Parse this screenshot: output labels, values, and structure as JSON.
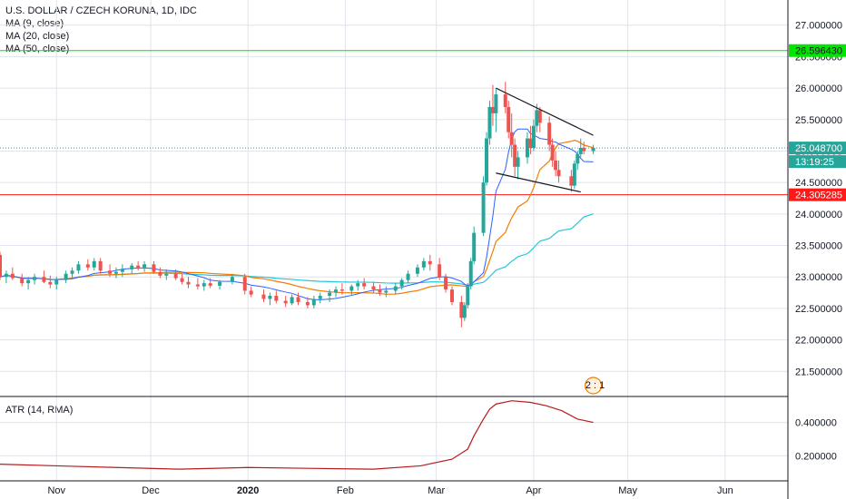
{
  "legend": {
    "symbol": "U.S. DOLLAR / CZECH KORUNA, 1D, IDC",
    "ma9": "MA (9, close)",
    "ma20": "MA (20, close)",
    "ma50": "MA (50, close)",
    "atr": "ATR (14, RMA)"
  },
  "colors": {
    "up": "#26a69a",
    "down": "#ef5350",
    "ma9": "#2962ff",
    "ma20": "#f57c00",
    "ma50": "#26c6da",
    "atr": "#b71c1c",
    "green_line": "#00e600",
    "red_line": "#ff1a1a",
    "price_line": "#26a69a",
    "grid": "#e0e3eb"
  },
  "price_axis": {
    "ticks": [
      "27.000000",
      "26.500000",
      "26.000000",
      "25.500000",
      "25.000000",
      "24.500000",
      "24.000000",
      "23.500000",
      "23.000000",
      "22.500000",
      "22.000000",
      "21.500000"
    ],
    "tags": [
      {
        "name": "green-level-tag",
        "label": "26.596430",
        "bg": "#00e600",
        "fg": "#131722"
      },
      {
        "name": "last-price-tag",
        "label": "25.048700",
        "bg": "#26a69a",
        "fg": "#ffffff"
      },
      {
        "name": "countdown-tag",
        "label": "13:19:25",
        "bg": "#26a69a",
        "fg": "#ffffff"
      },
      {
        "name": "red-level-tag",
        "label": "24.305285",
        "bg": "#ff1a1a",
        "fg": "#ffffff"
      }
    ]
  },
  "atr_axis": {
    "ticks": [
      "0.400000",
      "0.200000"
    ]
  },
  "time_axis": {
    "labels": [
      "Nov",
      "Dec",
      "2020",
      "Feb",
      "Mar",
      "Apr",
      "May",
      "Jun"
    ]
  },
  "event_badge": {
    "text": "2 : 1"
  },
  "chart_data": {
    "type": "candlestick",
    "title": "U.S. DOLLAR / CZECH KORUNA, 1D, IDC",
    "ylim": [
      21.1,
      27.4
    ],
    "horizontal_levels": [
      {
        "name": "green-level",
        "value": 26.59643
      },
      {
        "name": "red-level",
        "value": 24.305285
      },
      {
        "name": "last-price",
        "value": 25.0487
      }
    ],
    "trend_lines": [
      {
        "name": "upper-channel-line",
        "from": [
          "2020-03-20",
          26.0
        ],
        "to": [
          "2020-04-20",
          25.25
        ]
      },
      {
        "name": "lower-channel-line",
        "from": [
          "2020-03-20",
          24.65
        ],
        "to": [
          "2020-04-16",
          24.35
        ]
      }
    ],
    "candles": [
      [
        "2019-10-14",
        23.35,
        23.4,
        22.95,
        23.0
      ],
      [
        "2019-10-16",
        23.0,
        23.1,
        22.9,
        23.05
      ],
      [
        "2019-10-18",
        23.05,
        23.15,
        22.95,
        22.98
      ],
      [
        "2019-10-21",
        22.98,
        23.05,
        22.85,
        22.9
      ],
      [
        "2019-10-23",
        22.9,
        23.0,
        22.8,
        22.95
      ],
      [
        "2019-10-25",
        22.95,
        23.05,
        22.88,
        23.0
      ],
      [
        "2019-10-28",
        23.0,
        23.1,
        22.9,
        22.92
      ],
      [
        "2019-10-30",
        22.92,
        23.02,
        22.82,
        22.88
      ],
      [
        "2019-11-01",
        22.88,
        23.0,
        22.8,
        22.95
      ],
      [
        "2019-11-04",
        22.95,
        23.1,
        22.9,
        23.05
      ],
      [
        "2019-11-06",
        23.05,
        23.15,
        22.98,
        23.1
      ],
      [
        "2019-11-08",
        23.1,
        23.25,
        23.05,
        23.2
      ],
      [
        "2019-11-11",
        23.2,
        23.28,
        23.1,
        23.15
      ],
      [
        "2019-11-13",
        23.15,
        23.3,
        23.1,
        23.25
      ],
      [
        "2019-11-15",
        23.25,
        23.3,
        23.05,
        23.1
      ],
      [
        "2019-11-18",
        23.1,
        23.2,
        23.0,
        23.05
      ],
      [
        "2019-11-20",
        23.05,
        23.15,
        22.98,
        23.08
      ],
      [
        "2019-11-22",
        23.08,
        23.2,
        23.0,
        23.12
      ],
      [
        "2019-11-25",
        23.12,
        23.22,
        23.05,
        23.18
      ],
      [
        "2019-11-27",
        23.18,
        23.25,
        23.1,
        23.15
      ],
      [
        "2019-11-29",
        23.15,
        23.25,
        23.08,
        23.2
      ],
      [
        "2019-12-02",
        23.2,
        23.25,
        23.05,
        23.08
      ],
      [
        "2019-12-04",
        23.08,
        23.15,
        22.98,
        23.02
      ],
      [
        "2019-12-06",
        23.02,
        23.12,
        22.95,
        23.05
      ],
      [
        "2019-12-09",
        23.05,
        23.12,
        22.95,
        22.98
      ],
      [
        "2019-12-11",
        22.98,
        23.05,
        22.88,
        22.92
      ],
      [
        "2019-12-13",
        22.92,
        23.0,
        22.82,
        22.88
      ],
      [
        "2019-12-16",
        22.88,
        22.98,
        22.8,
        22.85
      ],
      [
        "2019-12-18",
        22.85,
        22.95,
        22.78,
        22.9
      ],
      [
        "2019-12-20",
        22.9,
        22.98,
        22.82,
        22.86
      ],
      [
        "2019-12-23",
        22.86,
        22.95,
        22.8,
        22.92
      ],
      [
        "2019-12-27",
        22.92,
        23.05,
        22.88,
        23.0
      ],
      [
        "2019-12-31",
        23.0,
        23.05,
        22.72,
        22.78
      ],
      [
        "2020-01-02",
        22.78,
        22.85,
        22.68,
        22.72
      ],
      [
        "2020-01-06",
        22.72,
        22.8,
        22.6,
        22.65
      ],
      [
        "2020-01-08",
        22.65,
        22.75,
        22.55,
        22.7
      ],
      [
        "2020-01-10",
        22.7,
        22.78,
        22.58,
        22.62
      ],
      [
        "2020-01-13",
        22.62,
        22.7,
        22.52,
        22.58
      ],
      [
        "2020-01-15",
        22.58,
        22.72,
        22.55,
        22.68
      ],
      [
        "2020-01-17",
        22.68,
        22.75,
        22.55,
        22.6
      ],
      [
        "2020-01-20",
        22.6,
        22.68,
        22.5,
        22.55
      ],
      [
        "2020-01-22",
        22.55,
        22.7,
        22.5,
        22.65
      ],
      [
        "2020-01-24",
        22.65,
        22.75,
        22.58,
        22.7
      ],
      [
        "2020-01-27",
        22.7,
        22.8,
        22.6,
        22.75
      ],
      [
        "2020-01-29",
        22.75,
        22.85,
        22.68,
        22.8
      ],
      [
        "2020-01-31",
        22.8,
        22.9,
        22.72,
        22.78
      ],
      [
        "2020-02-03",
        22.78,
        22.88,
        22.7,
        22.85
      ],
      [
        "2020-02-05",
        22.85,
        22.95,
        22.78,
        22.9
      ],
      [
        "2020-02-07",
        22.9,
        22.98,
        22.8,
        22.85
      ],
      [
        "2020-02-10",
        22.85,
        22.92,
        22.75,
        22.8
      ],
      [
        "2020-02-12",
        22.8,
        22.88,
        22.7,
        22.75
      ],
      [
        "2020-02-14",
        22.75,
        22.85,
        22.68,
        22.78
      ],
      [
        "2020-02-17",
        22.78,
        22.9,
        22.72,
        22.85
      ],
      [
        "2020-02-19",
        22.85,
        22.98,
        22.8,
        22.95
      ],
      [
        "2020-02-21",
        22.95,
        23.1,
        22.9,
        23.05
      ],
      [
        "2020-02-24",
        23.05,
        23.2,
        23.0,
        23.15
      ],
      [
        "2020-02-26",
        23.15,
        23.3,
        23.1,
        23.25
      ],
      [
        "2020-02-28",
        23.25,
        23.35,
        23.1,
        23.2
      ],
      [
        "2020-03-02",
        23.2,
        23.3,
        22.95,
        23.0
      ],
      [
        "2020-03-04",
        23.0,
        23.05,
        22.75,
        22.8
      ],
      [
        "2020-03-06",
        22.8,
        22.85,
        22.55,
        22.6
      ],
      [
        "2020-03-09",
        22.6,
        22.7,
        22.2,
        22.35
      ],
      [
        "2020-03-10",
        22.35,
        22.6,
        22.3,
        22.55
      ],
      [
        "2020-03-11",
        22.55,
        22.9,
        22.5,
        22.85
      ],
      [
        "2020-03-12",
        22.85,
        23.3,
        22.8,
        23.25
      ],
      [
        "2020-03-13",
        23.25,
        23.8,
        23.2,
        23.7
      ],
      [
        "2020-03-16",
        23.7,
        24.6,
        23.65,
        24.5
      ],
      [
        "2020-03-17",
        24.5,
        25.3,
        24.45,
        25.2
      ],
      [
        "2020-03-18",
        25.2,
        25.8,
        25.1,
        25.7
      ],
      [
        "2020-03-19",
        25.7,
        26.05,
        25.4,
        25.6
      ],
      [
        "2020-03-20",
        25.6,
        26.0,
        25.3,
        25.9
      ],
      [
        "2020-03-23",
        25.9,
        26.1,
        25.6,
        25.7
      ],
      [
        "2020-03-24",
        25.7,
        25.8,
        25.2,
        25.3
      ],
      [
        "2020-03-25",
        25.3,
        25.6,
        24.9,
        25.1
      ],
      [
        "2020-03-26",
        25.1,
        25.2,
        24.6,
        24.75
      ],
      [
        "2020-03-27",
        24.75,
        25.0,
        24.55,
        24.9
      ],
      [
        "2020-03-30",
        24.9,
        25.3,
        24.8,
        25.2
      ],
      [
        "2020-03-31",
        25.2,
        25.4,
        24.95,
        25.05
      ],
      [
        "2020-04-01",
        25.05,
        25.5,
        25.0,
        25.4
      ],
      [
        "2020-04-02",
        25.4,
        25.75,
        25.3,
        25.65
      ],
      [
        "2020-04-03",
        25.65,
        25.7,
        25.3,
        25.45
      ],
      [
        "2020-04-06",
        25.45,
        25.55,
        25.0,
        25.1
      ],
      [
        "2020-04-07",
        25.1,
        25.2,
        24.75,
        24.85
      ],
      [
        "2020-04-08",
        24.85,
        25.0,
        24.6,
        24.7
      ],
      [
        "2020-04-09",
        24.7,
        24.85,
        24.5,
        24.6
      ],
      [
        "2020-04-13",
        24.6,
        24.7,
        24.35,
        24.45
      ],
      [
        "2020-04-14",
        24.45,
        24.85,
        24.4,
        24.8
      ],
      [
        "2020-04-15",
        24.8,
        25.0,
        24.7,
        24.95
      ],
      [
        "2020-04-16",
        24.95,
        25.2,
        24.9,
        25.05
      ],
      [
        "2020-04-17",
        25.05,
        25.15,
        24.95,
        25.0
      ],
      [
        "2020-04-20",
        25.0,
        25.1,
        24.95,
        25.05
      ]
    ],
    "atr_series": [
      [
        "2019-10-14",
        0.15
      ],
      [
        "2019-11-01",
        0.14
      ],
      [
        "2019-11-20",
        0.13
      ],
      [
        "2019-12-10",
        0.12
      ],
      [
        "2020-01-01",
        0.13
      ],
      [
        "2020-01-20",
        0.125
      ],
      [
        "2020-02-10",
        0.12
      ],
      [
        "2020-02-25",
        0.14
      ],
      [
        "2020-03-06",
        0.18
      ],
      [
        "2020-03-11",
        0.24
      ],
      [
        "2020-03-13",
        0.32
      ],
      [
        "2020-03-16",
        0.42
      ],
      [
        "2020-03-18",
        0.48
      ],
      [
        "2020-03-20",
        0.51
      ],
      [
        "2020-03-25",
        0.53
      ],
      [
        "2020-03-31",
        0.52
      ],
      [
        "2020-04-05",
        0.5
      ],
      [
        "2020-04-10",
        0.47
      ],
      [
        "2020-04-15",
        0.42
      ],
      [
        "2020-04-20",
        0.4
      ]
    ],
    "atr_ylim": [
      0.05,
      0.55
    ]
  }
}
